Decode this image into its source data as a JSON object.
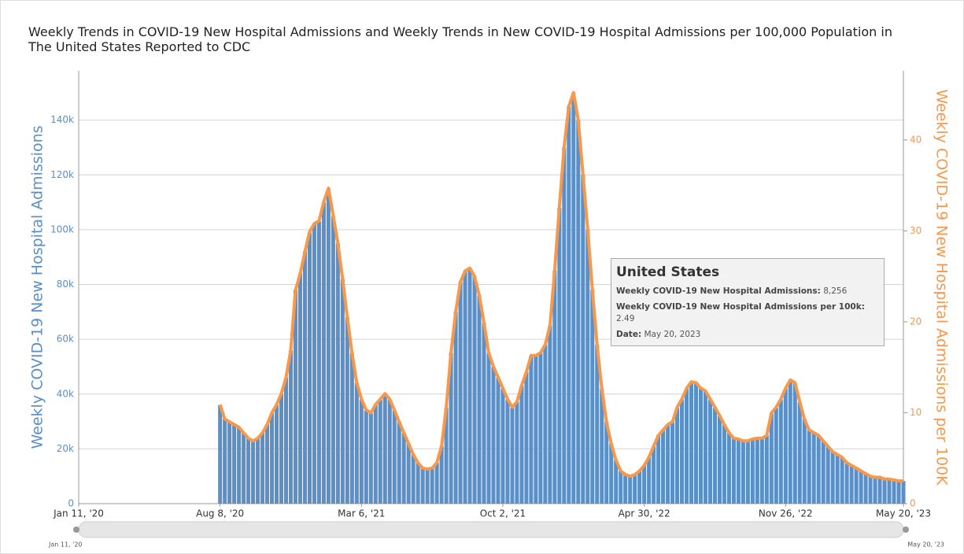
{
  "chart_data": {
    "type": "bar_line",
    "title": "Weekly Trends in COVID-19 New Hospital Admissions and Weekly Trends in New COVID-19 Hospital Admissions per 100,000 Population in The United States Reported to CDC",
    "y_label": "Weekly COVID-19 New Hospital Admissions",
    "y2_label": "Weekly COVID-19 New Hospital Admissions per 100K",
    "x": [
      "2020-08-08",
      "2020-08-15",
      "2020-08-22",
      "2020-08-29",
      "2020-09-05",
      "2020-09-12",
      "2020-09-19",
      "2020-09-26",
      "2020-10-03",
      "2020-10-10",
      "2020-10-17",
      "2020-10-24",
      "2020-10-31",
      "2020-11-07",
      "2020-11-14",
      "2020-11-21",
      "2020-11-28",
      "2020-12-05",
      "2020-12-12",
      "2020-12-19",
      "2020-12-26",
      "2021-01-02",
      "2021-01-09",
      "2021-01-16",
      "2021-01-23",
      "2021-01-30",
      "2021-02-06",
      "2021-02-13",
      "2021-02-20",
      "2021-02-27",
      "2021-03-06",
      "2021-03-13",
      "2021-03-20",
      "2021-03-27",
      "2021-04-03",
      "2021-04-10",
      "2021-04-17",
      "2021-04-24",
      "2021-05-01",
      "2021-05-08",
      "2021-05-15",
      "2021-05-22",
      "2021-05-29",
      "2021-06-05",
      "2021-06-12",
      "2021-06-19",
      "2021-06-26",
      "2021-07-03",
      "2021-07-10",
      "2021-07-17",
      "2021-07-24",
      "2021-07-31",
      "2021-08-07",
      "2021-08-14",
      "2021-08-21",
      "2021-08-28",
      "2021-09-04",
      "2021-09-11",
      "2021-09-18",
      "2021-09-25",
      "2021-10-02",
      "2021-10-09",
      "2021-10-16",
      "2021-10-23",
      "2021-10-30",
      "2021-11-06",
      "2021-11-13",
      "2021-11-20",
      "2021-11-27",
      "2021-12-04",
      "2021-12-11",
      "2021-12-18",
      "2021-12-25",
      "2022-01-01",
      "2022-01-08",
      "2022-01-15",
      "2022-01-22",
      "2022-01-29",
      "2022-02-05",
      "2022-02-12",
      "2022-02-19",
      "2022-02-26",
      "2022-03-05",
      "2022-03-12",
      "2022-03-19",
      "2022-03-26",
      "2022-04-02",
      "2022-04-09",
      "2022-04-16",
      "2022-04-23",
      "2022-04-30",
      "2022-05-07",
      "2022-05-14",
      "2022-05-21",
      "2022-05-28",
      "2022-06-04",
      "2022-06-11",
      "2022-06-18",
      "2022-06-25",
      "2022-07-02",
      "2022-07-09",
      "2022-07-16",
      "2022-07-23",
      "2022-07-30",
      "2022-08-06",
      "2022-08-13",
      "2022-08-20",
      "2022-08-27",
      "2022-09-03",
      "2022-09-10",
      "2022-09-17",
      "2022-09-24",
      "2022-10-01",
      "2022-10-08",
      "2022-10-15",
      "2022-10-22",
      "2022-10-29",
      "2022-11-05",
      "2022-11-12",
      "2022-11-19",
      "2022-11-26",
      "2022-12-03",
      "2022-12-10",
      "2022-12-17",
      "2022-12-24",
      "2022-12-31",
      "2023-01-07",
      "2023-01-14",
      "2023-01-21",
      "2023-01-28",
      "2023-02-04",
      "2023-02-11",
      "2023-02-18",
      "2023-02-25",
      "2023-03-04",
      "2023-03-11",
      "2023-03-18",
      "2023-03-25",
      "2023-04-01",
      "2023-04-08",
      "2023-04-15",
      "2023-04-22",
      "2023-04-29",
      "2023-05-06",
      "2023-05-13",
      "2023-05-20"
    ],
    "series": [
      {
        "name": "Weekly COVID-19 New Hospital Admissions",
        "color": "#5b8fc7",
        "values": [
          36000,
          31000,
          30000,
          29000,
          28000,
          26000,
          24000,
          23000,
          24000,
          26000,
          29000,
          33000,
          36000,
          40000,
          46000,
          56000,
          78000,
          84000,
          92000,
          99000,
          102000,
          103000,
          110000,
          115000,
          105000,
          95000,
          82000,
          68000,
          55000,
          44000,
          38000,
          34000,
          33000,
          36000,
          38000,
          40000,
          38000,
          34000,
          30000,
          26000,
          22000,
          18000,
          15000,
          13000,
          12500,
          13000,
          15000,
          21000,
          35000,
          55000,
          70000,
          81000,
          85000,
          86000,
          83000,
          76000,
          66000,
          55000,
          50000,
          46000,
          42000,
          38000,
          35000,
          37000,
          43000,
          48000,
          54000,
          54000,
          55000,
          58000,
          65000,
          85000,
          108000,
          130000,
          145000,
          150000,
          140000,
          120000,
          100000,
          78000,
          58000,
          42000,
          30000,
          22000,
          16000,
          12000,
          10500,
          10000,
          10500,
          12000,
          14000,
          17000,
          21000,
          25000,
          27000,
          29000,
          30000,
          35000,
          38000,
          42000,
          44500,
          44000,
          42000,
          41000,
          38000,
          35000,
          32000,
          29000,
          26000,
          24000,
          23500,
          23000,
          23000,
          23500,
          24000,
          24000,
          25000,
          33000,
          35000,
          38000,
          42000,
          45000,
          44000,
          37000,
          31000,
          27000,
          26000,
          25000,
          23000,
          21000,
          19000,
          18000,
          17000,
          15000,
          14000,
          13000,
          12000,
          11000,
          10000,
          9500,
          9500,
          9000,
          9000,
          8500,
          8300,
          8256
        ]
      },
      {
        "name": "Weekly COVID-19 New Hospital Admissions per 100k",
        "color": "#f7984a",
        "axis": "y2",
        "values": [
          10.9,
          9.3,
          9.0,
          8.7,
          8.4,
          7.8,
          7.2,
          6.9,
          7.2,
          7.8,
          8.7,
          10.0,
          10.9,
          12.1,
          13.9,
          16.9,
          23.5,
          25.3,
          27.7,
          29.9,
          30.8,
          31.1,
          33.2,
          34.7,
          31.7,
          28.6,
          24.7,
          20.5,
          16.6,
          13.3,
          11.5,
          10.3,
          10.0,
          10.9,
          11.5,
          12.1,
          11.5,
          10.3,
          9.0,
          7.8,
          6.6,
          5.4,
          4.5,
          3.9,
          3.8,
          3.9,
          4.5,
          6.3,
          10.6,
          16.6,
          21.1,
          24.4,
          25.6,
          25.9,
          25.0,
          22.9,
          19.9,
          16.6,
          15.1,
          13.9,
          12.7,
          11.5,
          10.6,
          11.2,
          13.0,
          14.5,
          16.3,
          16.3,
          16.6,
          17.5,
          19.6,
          25.6,
          32.6,
          39.2,
          43.7,
          45.2,
          42.2,
          36.2,
          30.2,
          23.5,
          17.5,
          12.7,
          9.0,
          6.6,
          4.8,
          3.6,
          3.2,
          3.0,
          3.2,
          3.6,
          4.2,
          5.1,
          6.3,
          7.5,
          8.1,
          8.7,
          9.0,
          10.6,
          11.5,
          12.7,
          13.4,
          13.3,
          12.7,
          12.4,
          11.5,
          10.6,
          9.7,
          8.7,
          7.8,
          7.2,
          7.1,
          6.9,
          6.9,
          7.1,
          7.2,
          7.2,
          7.5,
          10.0,
          10.6,
          11.5,
          12.7,
          13.6,
          13.3,
          11.2,
          9.3,
          8.1,
          7.8,
          7.5,
          6.9,
          6.3,
          5.7,
          5.4,
          5.1,
          4.5,
          4.2,
          3.9,
          3.6,
          3.3,
          3.0,
          2.9,
          2.9,
          2.7,
          2.7,
          2.6,
          2.5,
          2.49
        ]
      }
    ],
    "xlim": [
      "2020-01-11",
      "2023-05-20"
    ],
    "xticks": [
      {
        "value": "2020-01-11",
        "label": "Jan 11, '20"
      },
      {
        "value": "2020-08-08",
        "label": "Aug 8, '20"
      },
      {
        "value": "2021-03-06",
        "label": "Mar 6, '21"
      },
      {
        "value": "2021-10-02",
        "label": "Oct 2, '21"
      },
      {
        "value": "2022-04-30",
        "label": "Apr 30, '22"
      },
      {
        "value": "2022-11-26",
        "label": "Nov 26, '22"
      },
      {
        "value": "2023-05-20",
        "label": "May 20, '23"
      }
    ],
    "ylim": [
      0,
      158000
    ],
    "yticks": [
      0,
      {
        "value": 20000,
        "label": "20k"
      },
      {
        "value": 40000,
        "label": "40k"
      },
      {
        "value": 60000,
        "label": "60k"
      },
      {
        "value": 80000,
        "label": "80k"
      },
      {
        "value": 100000,
        "label": "100k"
      },
      {
        "value": 120000,
        "label": "120k"
      },
      {
        "value": 140000,
        "label": "140k"
      }
    ],
    "y2lim": [
      0,
      47.6
    ],
    "y2ticks": [
      0,
      10,
      20,
      30,
      40
    ],
    "grid": true,
    "range_slider": {
      "start_label": "Jan 11, '20",
      "end_label": "May 20, '23"
    },
    "tooltip": {
      "title": "United States",
      "rows": [
        {
          "label": "Weekly COVID-19 New Hospital Admissions:",
          "value": "8,256"
        },
        {
          "label": "Weekly COVID-19 New Hospital Admissions per 100k:",
          "value": "2.49"
        },
        {
          "label": "Date:",
          "value": "May 20, 2023"
        }
      ]
    }
  }
}
